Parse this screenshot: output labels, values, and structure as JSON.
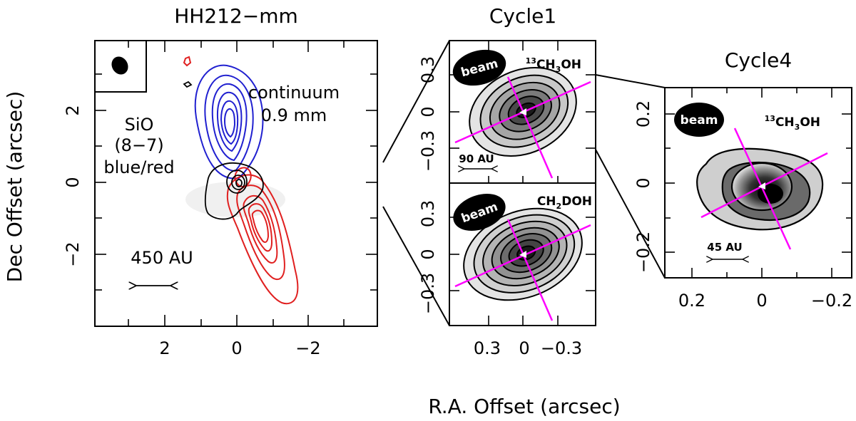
{
  "figure": {
    "xlabel": "R.A. Offset (arcsec)",
    "ylabel": "Dec Offset (arcsec)"
  },
  "panel_main": {
    "title": "HH212−mm",
    "x_ticks": [
      "2",
      "0",
      "−2"
    ],
    "y_ticks": [
      "2",
      "0",
      "−2"
    ],
    "sio_line1": "SiO",
    "sio_line2": "(8−7)",
    "sio_line3": "blue/red",
    "continuum_line1": "continuum",
    "continuum_line2": "0.9 mm",
    "scale_label": "450 AU",
    "colors": {
      "blue_lobe": "#2020d0",
      "red_lobe": "#e02020",
      "continuum": "#000000"
    }
  },
  "panel_cycle1": {
    "title": "Cycle1",
    "x_ticks": [
      "0.3",
      "0",
      "−0.3"
    ],
    "top": {
      "molecule_iso": "13",
      "molecule_a": "CH",
      "molecule_sub": "3",
      "molecule_b": "OH",
      "beam_label": "beam",
      "y_ticks": [
        "0.3",
        "0",
        "−0.3"
      ],
      "scale_label": "90 AU"
    },
    "bottom": {
      "molecule_a": "CH",
      "molecule_sub": "2",
      "molecule_b": "DOH",
      "beam_label": "beam",
      "y_ticks": [
        "0.3",
        "0",
        "−0.3"
      ]
    },
    "axis_color": "#ff00ff"
  },
  "panel_cycle4": {
    "title": "Cycle4",
    "x_ticks": [
      "0.2",
      "0",
      "−0.2"
    ],
    "y_ticks": [
      "0.2",
      "0",
      "−0.2"
    ],
    "molecule_iso": "13",
    "molecule_a": "CH",
    "molecule_sub": "3",
    "molecule_b": "OH",
    "beam_label": "beam",
    "scale_label": "45 AU",
    "axis_color": "#ff00ff"
  }
}
